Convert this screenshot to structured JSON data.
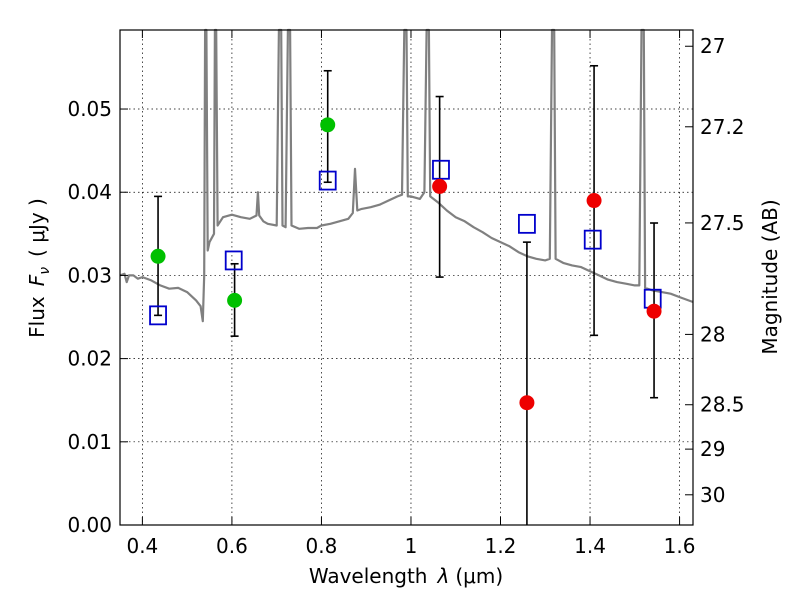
{
  "chart_data": {
    "type": "scatter",
    "xlabel_prefix": "Wavelength",
    "xlabel_symbol": "λ",
    "xlabel_unit": "(μm)",
    "ylabel_prefix": "Flux",
    "ylabel_symbol": "F",
    "ylabel_sub": "ν",
    "ylabel_unit": "( μJy )",
    "y2label": "Magnitude (AB)",
    "xlim": [
      0.35,
      1.63
    ],
    "ylim": [
      0.0,
      0.0595
    ],
    "xticks": [
      0.4,
      0.6,
      0.8,
      1.0,
      1.2,
      1.4,
      1.6
    ],
    "xtick_labels": [
      "0.4",
      "0.6",
      "0.8",
      "1",
      "1.2",
      "1.4",
      "1.6"
    ],
    "yticks": [
      0.0,
      0.01,
      0.02,
      0.03,
      0.04,
      0.05
    ],
    "ytick_labels": [
      "0.00",
      "0.01",
      "0.02",
      "0.03",
      "0.04",
      "0.05"
    ],
    "mag_ticks": [
      27,
      27.2,
      27.5,
      28,
      28.5,
      29,
      30
    ],
    "mag_tick_labels": [
      "27",
      "27.2",
      "27.5",
      "28",
      "28.5",
      "29",
      "30"
    ],
    "grid": true,
    "colors": {
      "green": "#00c000",
      "red": "#ee0000",
      "blue": "#0000cc",
      "model": "#808080",
      "errorbar": "#000000"
    },
    "observed_green": [
      {
        "x": 0.435,
        "y": 0.0323,
        "err": [
          0.0252,
          0.0395
        ]
      },
      {
        "x": 0.606,
        "y": 0.027,
        "err": [
          0.0227,
          0.0314
        ]
      },
      {
        "x": 0.814,
        "y": 0.0481,
        "err": [
          0.0412,
          0.0546
        ]
      }
    ],
    "observed_red": [
      {
        "x": 1.064,
        "y": 0.0407,
        "err": [
          0.0298,
          0.0515
        ]
      },
      {
        "x": 1.259,
        "y": 0.0147,
        "err": [
          0.0,
          0.034
        ]
      },
      {
        "x": 1.409,
        "y": 0.039,
        "err": [
          0.0228,
          0.0552
        ]
      },
      {
        "x": 1.543,
        "y": 0.0257,
        "err": [
          0.0153,
          0.0363
        ]
      }
    ],
    "model_photometry": [
      {
        "x": 0.435,
        "y": 0.0252
      },
      {
        "x": 0.604,
        "y": 0.0318
      },
      {
        "x": 0.814,
        "y": 0.0414
      },
      {
        "x": 1.067,
        "y": 0.0427
      },
      {
        "x": 1.259,
        "y": 0.0362
      },
      {
        "x": 1.406,
        "y": 0.0343
      },
      {
        "x": 1.54,
        "y": 0.0272
      }
    ],
    "model_spectrum": [
      [
        0.35,
        0.03
      ],
      [
        0.36,
        0.0302
      ],
      [
        0.365,
        0.0292
      ],
      [
        0.37,
        0.03
      ],
      [
        0.38,
        0.03
      ],
      [
        0.39,
        0.0296
      ],
      [
        0.4,
        0.0298
      ],
      [
        0.42,
        0.0294
      ],
      [
        0.44,
        0.0288
      ],
      [
        0.46,
        0.0284
      ],
      [
        0.48,
        0.0285
      ],
      [
        0.5,
        0.028
      ],
      [
        0.52,
        0.027
      ],
      [
        0.53,
        0.0263
      ],
      [
        0.535,
        0.0245
      ],
      [
        0.538,
        0.03
      ],
      [
        0.54,
        0.0595
      ],
      [
        0.543,
        0.0595
      ],
      [
        0.546,
        0.033
      ],
      [
        0.55,
        0.034
      ],
      [
        0.56,
        0.035
      ],
      [
        0.562,
        0.0595
      ],
      [
        0.565,
        0.0595
      ],
      [
        0.568,
        0.036
      ],
      [
        0.58,
        0.037
      ],
      [
        0.6,
        0.0373
      ],
      [
        0.62,
        0.037
      ],
      [
        0.64,
        0.0368
      ],
      [
        0.655,
        0.0372
      ],
      [
        0.658,
        0.04
      ],
      [
        0.661,
        0.0372
      ],
      [
        0.67,
        0.0365
      ],
      [
        0.68,
        0.0362
      ],
      [
        0.7,
        0.036
      ],
      [
        0.705,
        0.0595
      ],
      [
        0.71,
        0.0595
      ],
      [
        0.713,
        0.036
      ],
      [
        0.72,
        0.0358
      ],
      [
        0.725,
        0.0595
      ],
      [
        0.73,
        0.0595
      ],
      [
        0.733,
        0.036
      ],
      [
        0.75,
        0.0356
      ],
      [
        0.77,
        0.0357
      ],
      [
        0.79,
        0.0357
      ],
      [
        0.8,
        0.036
      ],
      [
        0.82,
        0.0362
      ],
      [
        0.84,
        0.0365
      ],
      [
        0.86,
        0.0368
      ],
      [
        0.87,
        0.0375
      ],
      [
        0.875,
        0.0428
      ],
      [
        0.88,
        0.0378
      ],
      [
        0.89,
        0.038
      ],
      [
        0.91,
        0.0382
      ],
      [
        0.93,
        0.0385
      ],
      [
        0.95,
        0.039
      ],
      [
        0.97,
        0.0395
      ],
      [
        0.98,
        0.0397
      ],
      [
        0.985,
        0.0595
      ],
      [
        0.99,
        0.0595
      ],
      [
        0.993,
        0.0395
      ],
      [
        1.0,
        0.0395
      ],
      [
        1.02,
        0.0392
      ],
      [
        1.03,
        0.04
      ],
      [
        1.035,
        0.0595
      ],
      [
        1.04,
        0.0595
      ],
      [
        1.043,
        0.0395
      ],
      [
        1.06,
        0.0388
      ],
      [
        1.08,
        0.0378
      ],
      [
        1.1,
        0.037
      ],
      [
        1.12,
        0.0365
      ],
      [
        1.14,
        0.0358
      ],
      [
        1.16,
        0.0352
      ],
      [
        1.18,
        0.0345
      ],
      [
        1.2,
        0.034
      ],
      [
        1.22,
        0.0335
      ],
      [
        1.24,
        0.0328
      ],
      [
        1.26,
        0.0323
      ],
      [
        1.28,
        0.032
      ],
      [
        1.3,
        0.0318
      ],
      [
        1.31,
        0.032
      ],
      [
        1.315,
        0.0595
      ],
      [
        1.32,
        0.0595
      ],
      [
        1.323,
        0.032
      ],
      [
        1.34,
        0.0315
      ],
      [
        1.36,
        0.0312
      ],
      [
        1.38,
        0.031
      ],
      [
        1.4,
        0.0305
      ],
      [
        1.42,
        0.03
      ],
      [
        1.44,
        0.0295
      ],
      [
        1.46,
        0.0292
      ],
      [
        1.48,
        0.029
      ],
      [
        1.5,
        0.0288
      ],
      [
        1.51,
        0.0288
      ],
      [
        1.515,
        0.0595
      ],
      [
        1.52,
        0.0595
      ],
      [
        1.523,
        0.0285
      ],
      [
        1.54,
        0.0282
      ],
      [
        1.56,
        0.028
      ],
      [
        1.58,
        0.0278
      ],
      [
        1.6,
        0.0274
      ],
      [
        1.62,
        0.027
      ],
      [
        1.63,
        0.0268
      ]
    ]
  }
}
